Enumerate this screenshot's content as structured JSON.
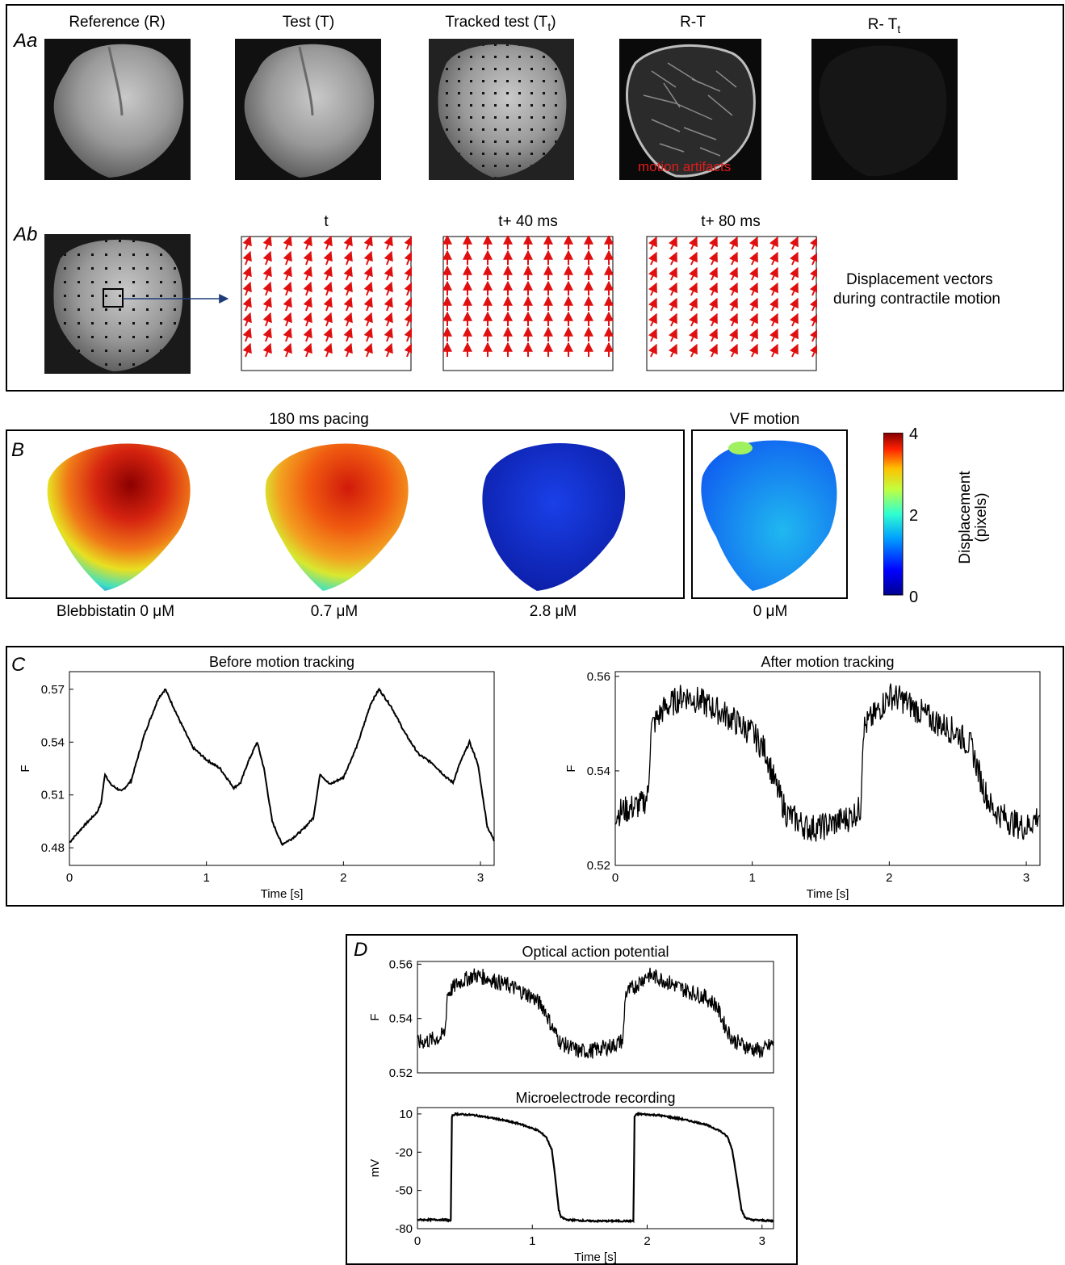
{
  "panel_a": {
    "label_aa": "Aa",
    "label_ab": "Ab",
    "titles": [
      "Reference (R)",
      "Test (T)",
      "Tracked test (T",
      "R-T",
      "R- T"
    ],
    "title_subscript": "t",
    "motion_artifacts": "motion artifacts",
    "vector_titles": [
      "t",
      "t+ 40 ms",
      "t+ 80 ms"
    ],
    "caption_line1": "Displacement vectors",
    "caption_line2": "during contractile motion"
  },
  "panel_b": {
    "label": "B",
    "title_pacing": "180 ms pacing",
    "title_vf": "VF motion",
    "bottom_labels": [
      "Blebbistatin 0 μM",
      "0.7 μM",
      "2.8 μM",
      "0 μM"
    ],
    "colorbar_label_1": "Displacement",
    "colorbar_label_2": "(pixels)",
    "colorbar_ticks": [
      "4",
      "2",
      "0"
    ]
  },
  "panel_c": {
    "label": "C"
  },
  "panel_d": {
    "label": "D"
  },
  "chart_data": [
    {
      "type": "line",
      "title": "Before motion tracking",
      "xlabel": "Time [s]",
      "ylabel": "F",
      "xlim": [
        0,
        3.1
      ],
      "ylim": [
        0.47,
        0.58
      ],
      "xticks": [
        0,
        1,
        2,
        3
      ],
      "yticks": [
        0.48,
        0.51,
        0.54,
        0.57
      ],
      "series": [
        {
          "x": [
            0,
            0.1,
            0.2,
            0.23,
            0.26,
            0.3,
            0.38,
            0.45,
            0.55,
            0.65,
            0.7,
            0.8,
            0.9,
            1.0,
            1.1,
            1.2,
            1.25,
            1.3,
            1.37,
            1.42,
            1.48,
            1.55,
            1.62,
            1.7,
            1.78,
            1.83,
            1.9,
            2.0,
            2.1,
            2.2,
            2.26,
            2.35,
            2.45,
            2.55,
            2.65,
            2.75,
            2.8,
            2.85,
            2.92,
            2.98,
            3.05,
            3.1
          ],
          "y": [
            0.483,
            0.492,
            0.5,
            0.505,
            0.522,
            0.516,
            0.512,
            0.518,
            0.545,
            0.565,
            0.57,
            0.553,
            0.537,
            0.53,
            0.525,
            0.514,
            0.517,
            0.528,
            0.54,
            0.525,
            0.495,
            0.482,
            0.485,
            0.49,
            0.497,
            0.522,
            0.516,
            0.52,
            0.538,
            0.562,
            0.57,
            0.56,
            0.545,
            0.533,
            0.528,
            0.52,
            0.517,
            0.528,
            0.54,
            0.528,
            0.492,
            0.484
          ]
        }
      ]
    },
    {
      "type": "line",
      "title": "After motion tracking",
      "xlabel": "Time [s]",
      "ylabel": "F",
      "xlim": [
        0,
        3.1
      ],
      "ylim": [
        0.52,
        0.561
      ],
      "xticks": [
        0,
        1,
        2,
        3
      ],
      "yticks": [
        0.52,
        0.54,
        0.56
      ],
      "series": [
        {
          "x": [
            0,
            0.1,
            0.2,
            0.24,
            0.26,
            0.35,
            0.5,
            0.6,
            0.8,
            1.0,
            1.1,
            1.17,
            1.25,
            1.4,
            1.5,
            1.6,
            1.7,
            1.79,
            1.81,
            1.9,
            2.0,
            2.1,
            2.3,
            2.5,
            2.6,
            2.68,
            2.75,
            2.9,
            3.0,
            3.1
          ],
          "y": [
            0.531,
            0.532,
            0.533,
            0.535,
            0.549,
            0.553,
            0.556,
            0.555,
            0.552,
            0.548,
            0.544,
            0.537,
            0.531,
            0.528,
            0.528,
            0.529,
            0.53,
            0.532,
            0.549,
            0.552,
            0.556,
            0.555,
            0.551,
            0.548,
            0.545,
            0.537,
            0.532,
            0.529,
            0.528,
            0.531
          ]
        }
      ]
    },
    {
      "type": "line",
      "title": "Optical action potential",
      "xlabel": "",
      "ylabel": "F",
      "xlim": [
        0,
        3.1
      ],
      "ylim": [
        0.52,
        0.561
      ],
      "xticks": [],
      "yticks": [
        0.52,
        0.54,
        0.56
      ],
      "series": [
        {
          "x": [
            0,
            0.1,
            0.2,
            0.24,
            0.26,
            0.35,
            0.5,
            0.6,
            0.8,
            1.0,
            1.1,
            1.17,
            1.25,
            1.4,
            1.5,
            1.6,
            1.7,
            1.79,
            1.81,
            1.9,
            2.0,
            2.1,
            2.3,
            2.5,
            2.6,
            2.68,
            2.75,
            2.9,
            3.0,
            3.1
          ],
          "y": [
            0.531,
            0.532,
            0.533,
            0.535,
            0.549,
            0.553,
            0.556,
            0.555,
            0.552,
            0.548,
            0.544,
            0.537,
            0.531,
            0.528,
            0.528,
            0.529,
            0.53,
            0.532,
            0.549,
            0.552,
            0.556,
            0.555,
            0.551,
            0.548,
            0.545,
            0.537,
            0.532,
            0.529,
            0.528,
            0.531
          ]
        }
      ]
    },
    {
      "type": "line",
      "title": "Microelectrode recording",
      "xlabel": "Time [s]",
      "ylabel": "mV",
      "xlim": [
        0,
        3.1
      ],
      "ylim": [
        -80,
        15
      ],
      "xticks": [
        0,
        1,
        2,
        3
      ],
      "yticks": [
        -80,
        -50,
        -20,
        10
      ],
      "series": [
        {
          "x": [
            0,
            0.25,
            0.29,
            0.3,
            0.31,
            0.33,
            0.5,
            0.7,
            0.9,
            1.05,
            1.12,
            1.17,
            1.2,
            1.23,
            1.25,
            1.3,
            1.5,
            1.7,
            1.88,
            1.89,
            1.9,
            1.92,
            2.1,
            2.3,
            2.5,
            2.63,
            2.7,
            2.74,
            2.78,
            2.82,
            2.85,
            2.9,
            3.1
          ],
          "y": [
            -73,
            -73,
            -74,
            8,
            9,
            10,
            9,
            6,
            2,
            -3,
            -8,
            -18,
            -40,
            -65,
            -71,
            -73,
            -74,
            -74,
            -74,
            8,
            9,
            10,
            9,
            6,
            2,
            -3,
            -8,
            -18,
            -40,
            -65,
            -71,
            -73,
            -74
          ]
        }
      ]
    }
  ]
}
